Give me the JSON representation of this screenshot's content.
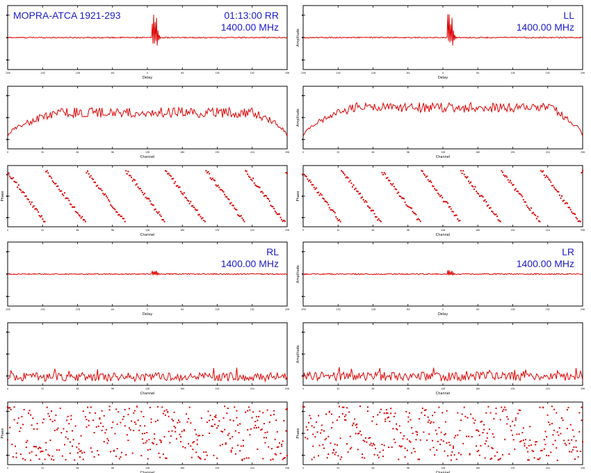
{
  "figure": {
    "source_label": "MOPRA-ATCA 1921-293",
    "time": "01:13:00",
    "frequency": "1400.00 MHz",
    "colors": {
      "trace": "#dd0000",
      "text": "#1a1acc",
      "axes": "#000000"
    }
  },
  "chart_data": [
    {
      "id": "rr-delay",
      "type": "line",
      "pol": "RR",
      "xlabel": "Delay",
      "ylabel": "",
      "xlim": [
        -256,
        256
      ],
      "ylim": [
        -1,
        1
      ],
      "xticks": [
        "-256",
        "-192",
        "-128",
        "-64",
        "0",
        "64",
        "128",
        "192",
        "256"
      ],
      "yticks": [
        "",
        "",
        ""
      ],
      "profile": "delay",
      "spike": 0.9
    },
    {
      "id": "ll-delay",
      "type": "line",
      "pol": "LL",
      "xlabel": "Delay",
      "ylabel": "Amplitude",
      "xlim": [
        -256,
        256
      ],
      "ylim": [
        -1,
        1
      ],
      "xticks": [
        "-256",
        "-192",
        "-128",
        "-64",
        "0",
        "64",
        "128",
        "192",
        "256"
      ],
      "yticks": [
        "",
        "",
        ""
      ],
      "profile": "delay",
      "spike": 0.9
    },
    {
      "id": "rr-amp",
      "type": "line",
      "xlabel": "Channel",
      "ylabel": "",
      "xlim": [
        0,
        256
      ],
      "ylim": [
        0,
        1
      ],
      "xticks": [
        "0",
        "32",
        "64",
        "96",
        "128",
        "160",
        "192",
        "224",
        "256"
      ],
      "yticks": [
        "",
        "",
        ""
      ],
      "profile": "bandpass",
      "level": 0.58,
      "noise": 0.08
    },
    {
      "id": "ll-amp",
      "type": "line",
      "xlabel": "Channel",
      "ylabel": "Amplitude",
      "xlim": [
        0,
        256
      ],
      "ylim": [
        0,
        1
      ],
      "xticks": [
        "0",
        "32",
        "64",
        "96",
        "128",
        "160",
        "192",
        "224",
        "256"
      ],
      "yticks": [
        "",
        "",
        ""
      ],
      "profile": "bandpass",
      "level": 0.66,
      "noise": 0.08
    },
    {
      "id": "rr-phase",
      "type": "scatter",
      "xlabel": "Channel",
      "ylabel": "Phase",
      "xlim": [
        0,
        256
      ],
      "ylim": [
        -180,
        180
      ],
      "xticks": [
        "0",
        "32",
        "64",
        "96",
        "128",
        "160",
        "192",
        "224",
        "256"
      ],
      "yticks": [
        "",
        "",
        ""
      ],
      "profile": "wrap",
      "wraps": 7
    },
    {
      "id": "ll-phase",
      "type": "scatter",
      "xlabel": "Channel",
      "ylabel": "Phase",
      "xlim": [
        0,
        256
      ],
      "ylim": [
        -180,
        180
      ],
      "xticks": [
        "0",
        "32",
        "64",
        "96",
        "128",
        "160",
        "192",
        "224",
        "256"
      ],
      "yticks": [
        "",
        "",
        ""
      ],
      "profile": "wrap",
      "wraps": 7
    },
    {
      "id": "rl-delay",
      "type": "line",
      "pol": "RL",
      "xlabel": "Delay",
      "ylabel": "",
      "xlim": [
        -256,
        256
      ],
      "ylim": [
        -1,
        1
      ],
      "xticks": [
        "-256",
        "-192",
        "-128",
        "-64",
        "0",
        "64",
        "128",
        "192",
        "256"
      ],
      "yticks": [
        "",
        "",
        ""
      ],
      "profile": "delay",
      "spike": 0.15
    },
    {
      "id": "lr-delay",
      "type": "line",
      "pol": "LR",
      "xlabel": "Delay",
      "ylabel": "Amplitude",
      "xlim": [
        -256,
        256
      ],
      "ylim": [
        -1,
        1
      ],
      "xticks": [
        "-256",
        "-192",
        "-128",
        "-64",
        "0",
        "64",
        "128",
        "192",
        "256"
      ],
      "yticks": [
        "",
        "",
        ""
      ],
      "profile": "delay",
      "spike": 0.15
    },
    {
      "id": "rl-amp",
      "type": "line",
      "xlabel": "Channel",
      "ylabel": "",
      "xlim": [
        0,
        256
      ],
      "ylim": [
        0,
        1
      ],
      "xticks": [
        "0",
        "32",
        "64",
        "96",
        "128",
        "160",
        "192",
        "224",
        "256"
      ],
      "yticks": [
        "",
        "",
        ""
      ],
      "profile": "noise",
      "level": 0.12,
      "noise": 0.07
    },
    {
      "id": "lr-amp",
      "type": "line",
      "xlabel": "Channel",
      "ylabel": "Amplitude",
      "xlim": [
        0,
        256
      ],
      "ylim": [
        0,
        1
      ],
      "xticks": [
        "0",
        "32",
        "64",
        "96",
        "128",
        "160",
        "192",
        "224",
        "256"
      ],
      "yticks": [
        "",
        "",
        ""
      ],
      "profile": "noise",
      "level": 0.13,
      "noise": 0.07
    },
    {
      "id": "rl-phase",
      "type": "scatter",
      "xlabel": "Channel",
      "ylabel": "Phase",
      "xlim": [
        0,
        256
      ],
      "ylim": [
        -180,
        180
      ],
      "xticks": [
        "0",
        "32",
        "64",
        "96",
        "128",
        "160",
        "192",
        "224",
        "256"
      ],
      "yticks": [
        "",
        "",
        ""
      ],
      "profile": "scatterwrap",
      "wraps": 7
    },
    {
      "id": "lr-phase",
      "type": "scatter",
      "xlabel": "Channel",
      "ylabel": "Phase",
      "xlim": [
        0,
        256
      ],
      "ylim": [
        -180,
        180
      ],
      "xticks": [
        "0",
        "32",
        "64",
        "96",
        "128",
        "160",
        "192",
        "224",
        "256"
      ],
      "yticks": [
        "",
        "",
        ""
      ],
      "profile": "scatterwrap",
      "wraps": 7
    }
  ]
}
